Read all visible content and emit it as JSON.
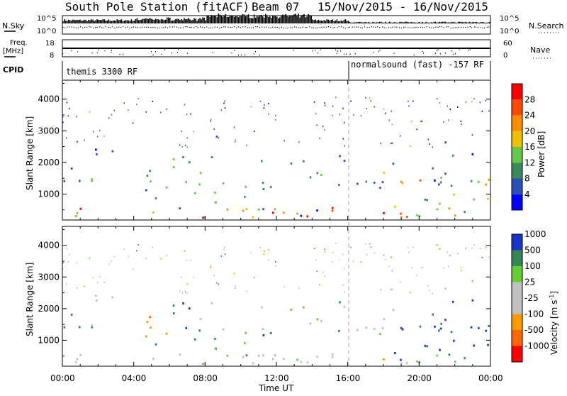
{
  "header": {
    "station": "South Pole Station (fitACF)",
    "beam": "Beam 07",
    "date_range": "15/Nov/2015 - 16/Nov/2015"
  },
  "strip": {
    "nsky_label": "N.Sky",
    "nsearch_label": "N.Search",
    "freq_label": "Freq.",
    "freq_unit": "[MHz]",
    "nave_label": "Nave",
    "cpid_label": "CPID",
    "noise_tick_top": "10^5",
    "noise_tick_bot": "10^0",
    "freq_tick_top": "18",
    "freq_tick_bot": "8",
    "nave_tick_top": "60",
    "nave_tick_bot": "0",
    "cpid_before": "themis 3300 RF",
    "cpid_after": "normalsound (fast) -157 RF"
  },
  "colors": {
    "power": [
      "#0000ff",
      "#2b4fb8",
      "#3c8a5a",
      "#66c84a",
      "#f0c000",
      "#ff8c00",
      "#ff4a00",
      "#ff0000"
    ],
    "velocity": [
      "#ff0000",
      "#ff6600",
      "#ff9900",
      "#c0c0c0",
      "#c0c0c0",
      "#66cc33",
      "#338855",
      "#1a33cc"
    ],
    "ground_scatter": "#b4b4b4"
  },
  "chart_data": [
    {
      "type": "heatmap",
      "panel": "power",
      "xlabel": "Time UT",
      "ylabel": "Slant Range [km]",
      "x_ticks": [
        "00:00",
        "04:00",
        "08:00",
        "12:00",
        "16:00",
        "20:00",
        "00:00"
      ],
      "x_range_hours": [
        0,
        24
      ],
      "y_ticks": [
        1000,
        2000,
        3000,
        4000
      ],
      "y_range": [
        180,
        4600
      ],
      "colorbar_label": "Power [dB]",
      "colorbar_ticks": [
        4,
        8,
        12,
        16,
        20,
        24,
        28
      ],
      "colorbar_range": [
        0,
        32
      ],
      "mode_change_hour": 16.0
    },
    {
      "type": "heatmap",
      "panel": "velocity",
      "xlabel": "Time UT",
      "ylabel": "Slant Range [km]",
      "x_ticks": [
        "00:00",
        "04:00",
        "08:00",
        "12:00",
        "16:00",
        "20:00",
        "00:00"
      ],
      "x_range_hours": [
        0,
        24
      ],
      "y_ticks": [
        1000,
        2000,
        3000,
        4000
      ],
      "y_range": [
        180,
        4600
      ],
      "colorbar_label": "Velocity [m s",
      "colorbar_label_sup": "-1",
      "colorbar_label_end": "]",
      "colorbar_ticks": [
        "-1000",
        "-500",
        "-100",
        "-25",
        "25",
        "100",
        "500",
        "1000"
      ],
      "mode_change_hour": 16.0
    }
  ]
}
